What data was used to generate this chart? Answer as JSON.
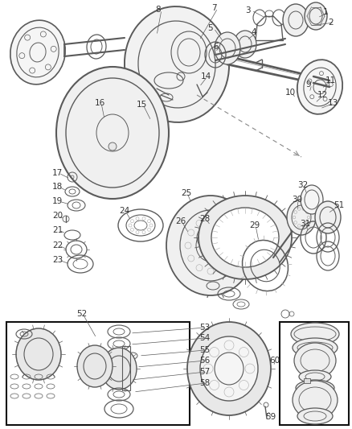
{
  "background_color": "#ffffff",
  "text_color": "#333333",
  "line_color": "#555555",
  "font_size": 7.5,
  "fig_w": 4.38,
  "fig_h": 5.33,
  "dpi": 100,
  "gray": "#5a5a5a",
  "lgray": "#aaaaaa",
  "black": "#111111",
  "lw_main": 1.2,
  "lw_med": 0.8,
  "lw_thin": 0.5
}
